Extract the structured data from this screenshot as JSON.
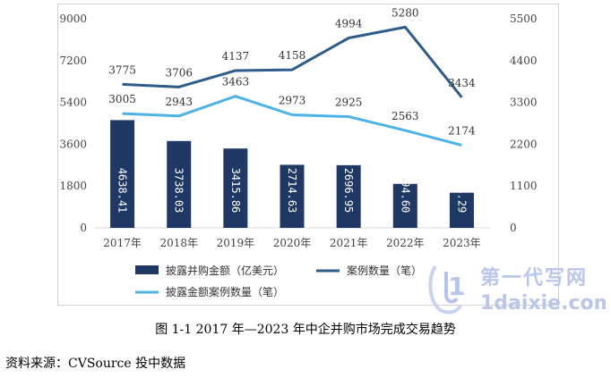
{
  "chart_data": {
    "type": "bar+line",
    "categories": [
      "2017年",
      "2018年",
      "2019年",
      "2020年",
      "2021年",
      "2022年",
      "2023年"
    ],
    "series": [
      {
        "name": "披露并购金额（亿美元）",
        "type": "bar",
        "axis": "left",
        "values": [
          4638.41,
          3738.03,
          3415.86,
          2714.63,
          2696.95,
          1894.6,
          1514.29
        ],
        "labels": [
          "4638.41",
          "3738.03",
          "3415.86",
          "2714.63",
          "2696.95",
          "1894.60",
          "1514.29"
        ],
        "color": "#1f3864"
      },
      {
        "name": "案例数量（笔）",
        "type": "line",
        "axis": "right",
        "values": [
          3775,
          3706,
          4137,
          4158,
          4994,
          5280,
          3434
        ],
        "color": "#2e5c8a"
      },
      {
        "name": "披露金额案例数量（笔）",
        "type": "line",
        "axis": "right",
        "values": [
          3005,
          2943,
          3463,
          2973,
          2925,
          2563,
          2174
        ],
        "color": "#4db3e6"
      }
    ],
    "y_left": {
      "ylim": [
        0,
        9000
      ],
      "ticks": [
        "0",
        "1800",
        "3600",
        "5400",
        "7200",
        "9000"
      ]
    },
    "y_right": {
      "ylim": [
        0,
        5500
      ],
      "ticks": [
        "0",
        "1100",
        "2200",
        "3300",
        "4400",
        "5500"
      ]
    },
    "legend_position": "bottom",
    "grid": false
  },
  "caption": "图  1-1 2017 年—2023 年中企并购市场完成交易趋势",
  "source": "资料来源：CVSource 投中数据",
  "watermark": {
    "title": "第一代写网",
    "url": "1daixie.com"
  }
}
